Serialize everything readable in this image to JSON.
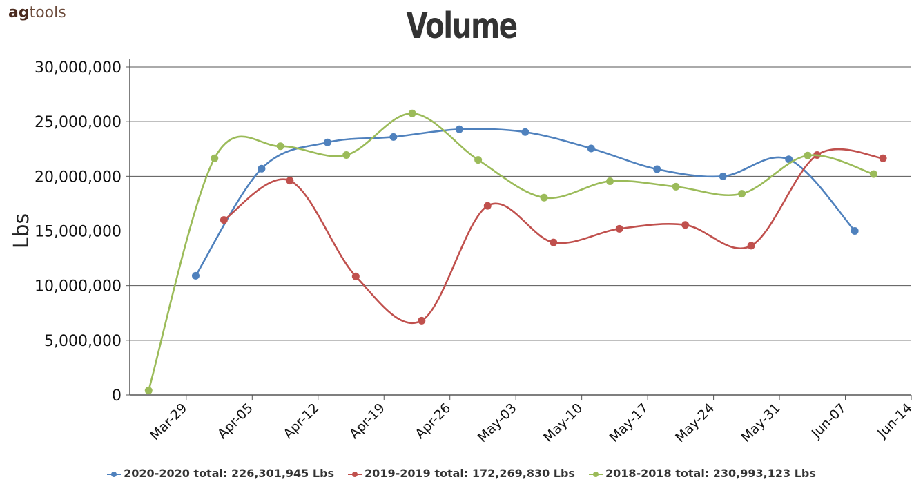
{
  "brand": {
    "part1": "ag",
    "part2": "tools"
  },
  "chart_data": {
    "type": "line",
    "title": "Volume",
    "ylabel": "Lbs",
    "xlabel": "",
    "ylim": [
      0,
      30000000
    ],
    "yticks": [
      0,
      5000000,
      10000000,
      15000000,
      20000000,
      25000000,
      30000000
    ],
    "ytick_labels": [
      "0",
      "5,000,000",
      "10,000,000",
      "15,000,000",
      "20,000,000",
      "25,000,000",
      "30,000,000"
    ],
    "xlim": [
      "2020-03-23",
      "2020-06-14"
    ],
    "xticks": [
      "2020-03-29",
      "2020-04-05",
      "2020-04-12",
      "2020-04-19",
      "2020-04-26",
      "2020-05-03",
      "2020-05-10",
      "2020-05-17",
      "2020-05-24",
      "2020-05-31",
      "2020-06-07",
      "2020-06-14"
    ],
    "xtick_labels": [
      "Mar-29",
      "Apr-05",
      "Apr-12",
      "Apr-19",
      "Apr-26",
      "May-03",
      "May-10",
      "May-17",
      "May-24",
      "May-31",
      "Jun-07",
      "Jun-14"
    ],
    "grid": true,
    "legend_position": "bottom",
    "series": [
      {
        "name": "2020-2020 total: 226,301,945 Lbs",
        "color": "#4f81bd",
        "points": [
          {
            "x": "2020-03-30",
            "y": 10900000
          },
          {
            "x": "2020-04-06",
            "y": 20700000
          },
          {
            "x": "2020-04-13",
            "y": 23100000
          },
          {
            "x": "2020-04-20",
            "y": 23600000
          },
          {
            "x": "2020-04-27",
            "y": 24300000
          },
          {
            "x": "2020-05-04",
            "y": 24050000
          },
          {
            "x": "2020-05-11",
            "y": 22550000
          },
          {
            "x": "2020-05-18",
            "y": 20650000
          },
          {
            "x": "2020-05-25",
            "y": 20000000
          },
          {
            "x": "2020-06-01",
            "y": 21550000
          },
          {
            "x": "2020-06-08",
            "y": 15000000
          }
        ]
      },
      {
        "name": "2019-2019 total: 172,269,830 Lbs",
        "color": "#c0504d",
        "points": [
          {
            "x": "2020-04-02",
            "y": 16000000
          },
          {
            "x": "2020-04-09",
            "y": 19600000
          },
          {
            "x": "2020-04-16",
            "y": 10850000
          },
          {
            "x": "2020-04-23",
            "y": 6800000
          },
          {
            "x": "2020-04-30",
            "y": 17300000
          },
          {
            "x": "2020-05-07",
            "y": 13950000
          },
          {
            "x": "2020-05-14",
            "y": 15200000
          },
          {
            "x": "2020-05-21",
            "y": 15550000
          },
          {
            "x": "2020-05-28",
            "y": 13650000
          },
          {
            "x": "2020-06-04",
            "y": 21950000
          },
          {
            "x": "2020-06-11",
            "y": 21650000
          }
        ]
      },
      {
        "name": "2018-2018 total: 230,993,123 Lbs",
        "color": "#9bbb59",
        "points": [
          {
            "x": "2020-03-25",
            "y": 400000
          },
          {
            "x": "2020-04-01",
            "y": 21650000
          },
          {
            "x": "2020-04-08",
            "y": 22750000
          },
          {
            "x": "2020-04-15",
            "y": 21950000
          },
          {
            "x": "2020-04-22",
            "y": 25750000
          },
          {
            "x": "2020-04-29",
            "y": 21500000
          },
          {
            "x": "2020-05-06",
            "y": 18050000
          },
          {
            "x": "2020-05-13",
            "y": 19550000
          },
          {
            "x": "2020-05-20",
            "y": 19050000
          },
          {
            "x": "2020-05-27",
            "y": 18400000
          },
          {
            "x": "2020-06-03",
            "y": 21900000
          },
          {
            "x": "2020-06-10",
            "y": 20200000
          }
        ]
      }
    ]
  }
}
